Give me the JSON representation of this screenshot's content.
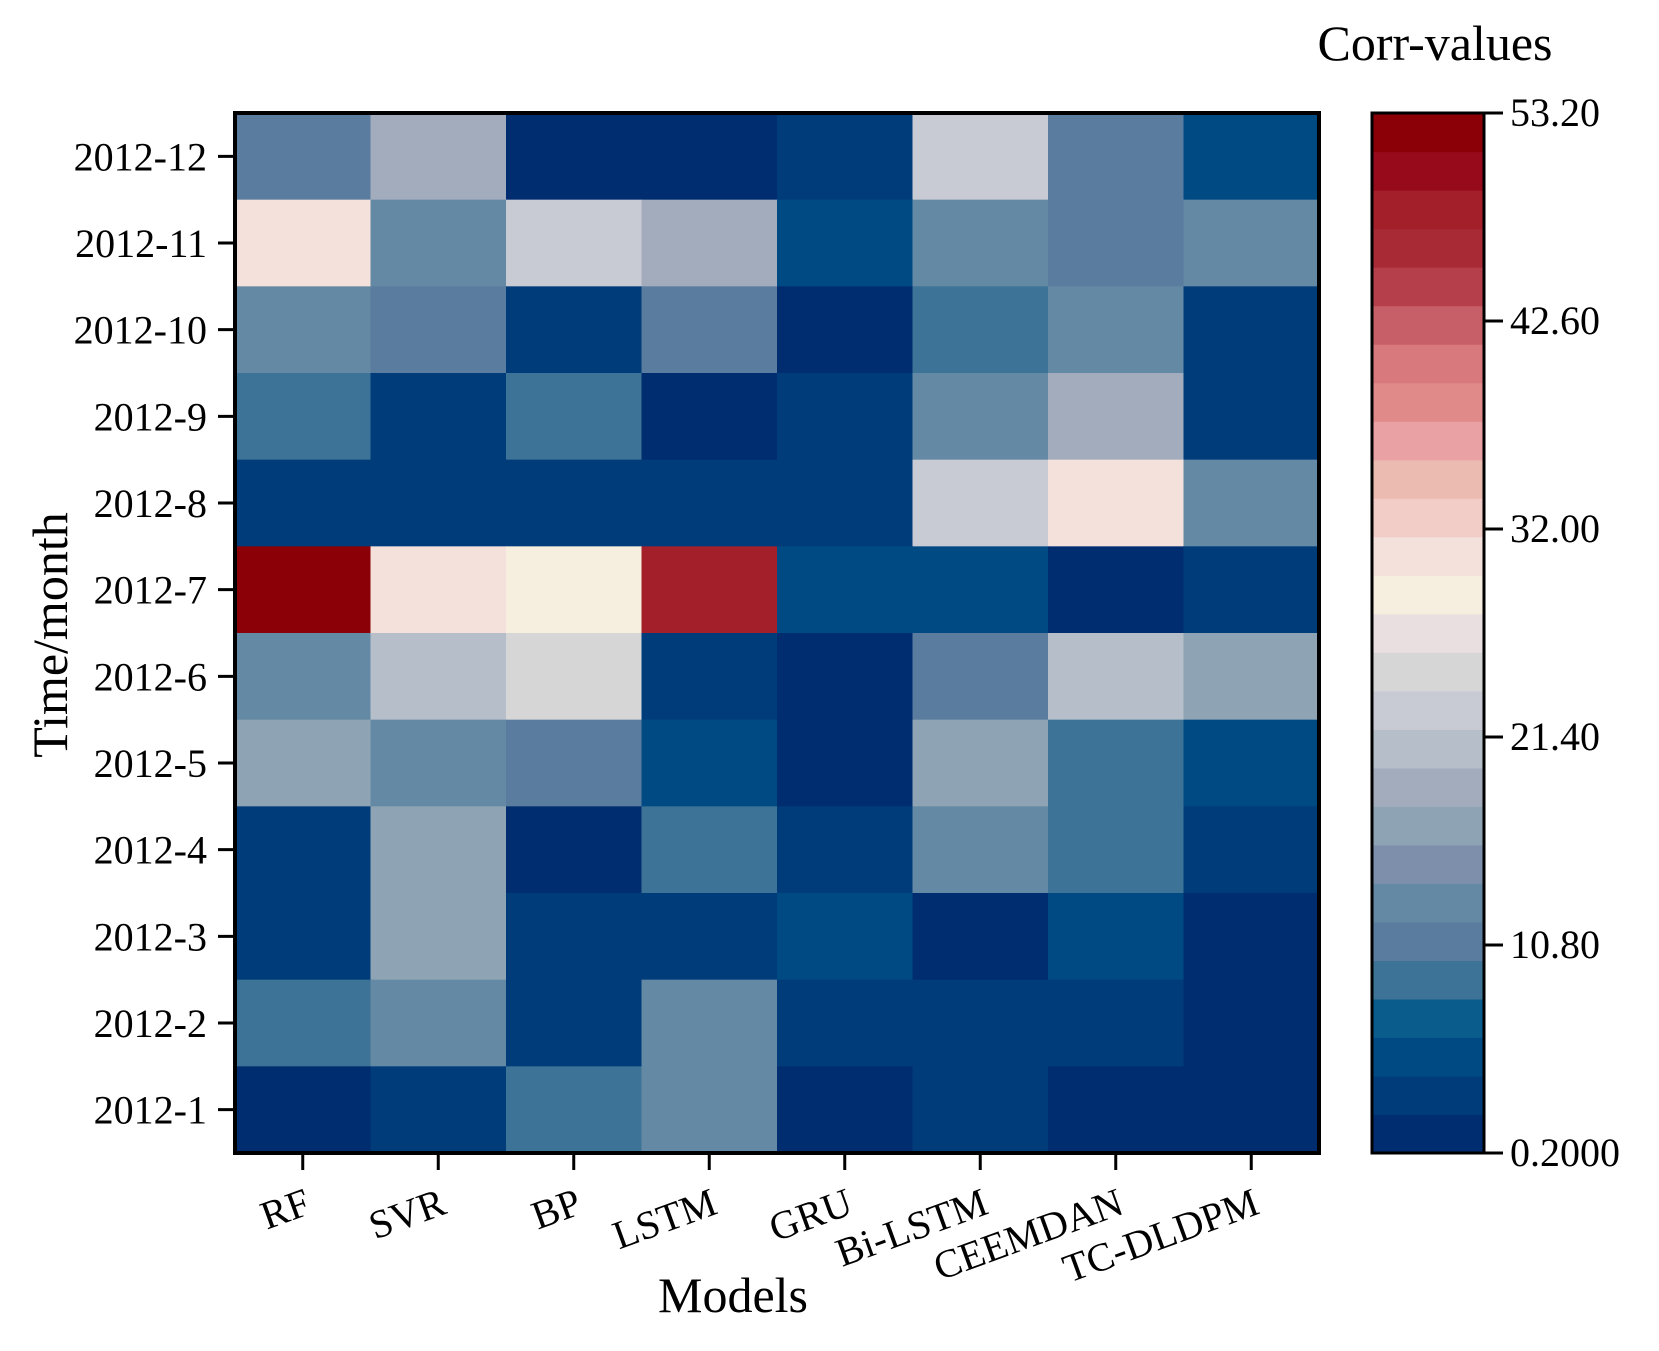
{
  "chart_data": {
    "type": "heatmap",
    "title": "",
    "xlabel": "Models",
    "ylabel": "Time/month",
    "colorbar_title": "Corr-values",
    "x_categories": [
      "RF",
      "SVR",
      "BP",
      "LSTM",
      "GRU",
      "Bi-LSTM",
      "CEEMDAN",
      "TC-DLDPM"
    ],
    "y_categories": [
      "2012-12",
      "2012-11",
      "2012-10",
      "2012-9",
      "2012-8",
      "2012-7",
      "2012-6",
      "2012-5",
      "2012-4",
      "2012-3",
      "2012-2",
      "2012-1"
    ],
    "values": [
      [
        10.5,
        18.8,
        1.0,
        1.0,
        3.0,
        23.0,
        10.5,
        5.5
      ],
      [
        31.0,
        13.5,
        23.0,
        18.8,
        5.5,
        13.5,
        10.5,
        12.0
      ],
      [
        13.5,
        10.5,
        3.0,
        10.5,
        1.0,
        8.5,
        13.5,
        3.0
      ],
      [
        8.5,
        4.0,
        8.5,
        1.0,
        4.0,
        13.5,
        18.8,
        4.0
      ],
      [
        3.0,
        4.0,
        3.0,
        3.0,
        4.0,
        23.0,
        31.0,
        12.0
      ],
      [
        53.2,
        30.0,
        28.5,
        48.0,
        5.5,
        5.5,
        1.0,
        3.0
      ],
      [
        13.5,
        20.0,
        25.5,
        4.0,
        1.0,
        10.5,
        20.0,
        16.0
      ],
      [
        16.0,
        13.5,
        10.5,
        5.5,
        1.0,
        16.0,
        8.5,
        5.5
      ],
      [
        4.0,
        16.0,
        1.0,
        8.5,
        3.0,
        12.0,
        8.5,
        4.0
      ],
      [
        4.0,
        16.0,
        4.0,
        3.0,
        5.5,
        1.0,
        5.5,
        1.0
      ],
      [
        8.5,
        12.0,
        3.0,
        12.0,
        3.0,
        3.0,
        3.0,
        1.0
      ],
      [
        1.0,
        4.0,
        8.5,
        13.5,
        1.0,
        3.0,
        1.0,
        1.0
      ]
    ],
    "colorbar_ticks": [
      "53.20",
      "42.60",
      "32.00",
      "21.40",
      "10.80",
      "0.2000"
    ],
    "colorbar_tick_values": [
      53.2,
      42.6,
      32.0,
      21.4,
      10.8,
      0.2
    ],
    "vmin": 0.2,
    "vmax": 53.2,
    "colorscale": [
      "#002D70",
      "#003C7A",
      "#004A84",
      "#0A5C8C",
      "#3D7396",
      "#5A7C9F",
      "#6489A4",
      "#7D8FAB",
      "#8EA4B4",
      "#A2ACBD",
      "#B5BEC9",
      "#C8CAD4",
      "#D6D6D6",
      "#E9DEE0",
      "#F6EEDF",
      "#F4E1DC",
      "#F2CCC6",
      "#EBBBB1",
      "#E9A1A3",
      "#E08A8A",
      "#D87A7D",
      "#C65F67",
      "#B5404C",
      "#A72A35",
      "#A31F29",
      "#970A1C",
      "#8A0006"
    ]
  }
}
